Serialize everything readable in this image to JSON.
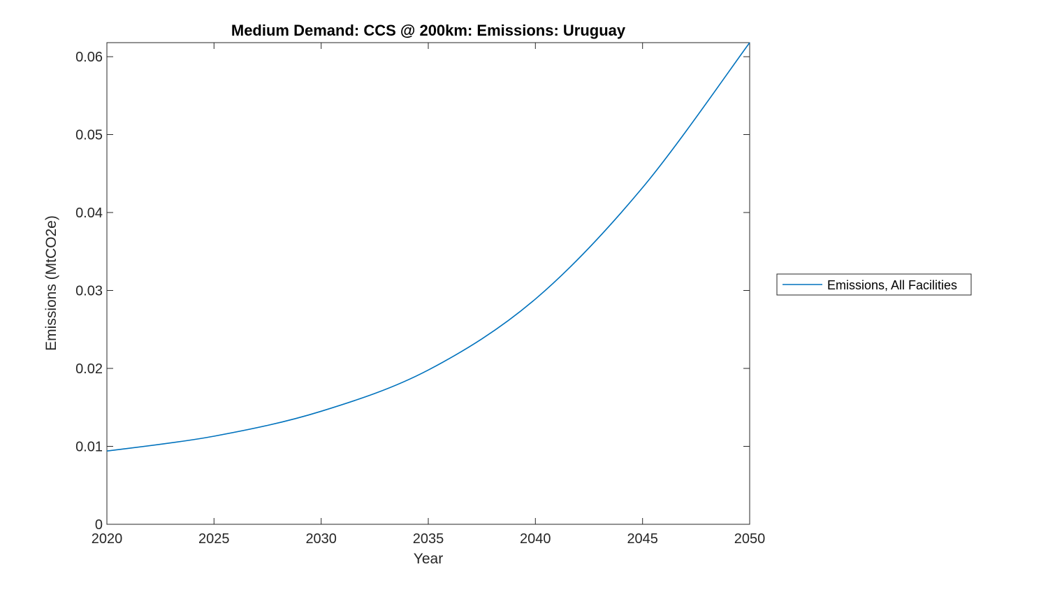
{
  "figure": {
    "background_color": "#ffffff",
    "axis_color": "#262626",
    "line_color": "#0072BD"
  },
  "chart_data": {
    "type": "line",
    "title": "Medium Demand: CCS @ 200km: Emissions: Uruguay",
    "xlabel": "Year",
    "ylabel": "Emissions (MtCO2e)",
    "xlim": [
      2020,
      2050
    ],
    "ylim": [
      0,
      0.0618
    ],
    "grid": false,
    "box": true,
    "tick_direction": "in",
    "xticks": [
      "2020",
      "2025",
      "2030",
      "2035",
      "2040",
      "2045",
      "2050"
    ],
    "yticks": [
      "0",
      "0.01",
      "0.02",
      "0.03",
      "0.04",
      "0.05",
      "0.06"
    ],
    "legend_position": "right-outside",
    "series": [
      {
        "name": "Emissions, All Facilities",
        "color": "#0072BD",
        "x": [
          2020,
          2025,
          2030,
          2035,
          2040,
          2045,
          2050
        ],
        "y": [
          0.0094,
          0.0113,
          0.0145,
          0.0198,
          0.0289,
          0.0432,
          0.0618
        ]
      }
    ]
  }
}
